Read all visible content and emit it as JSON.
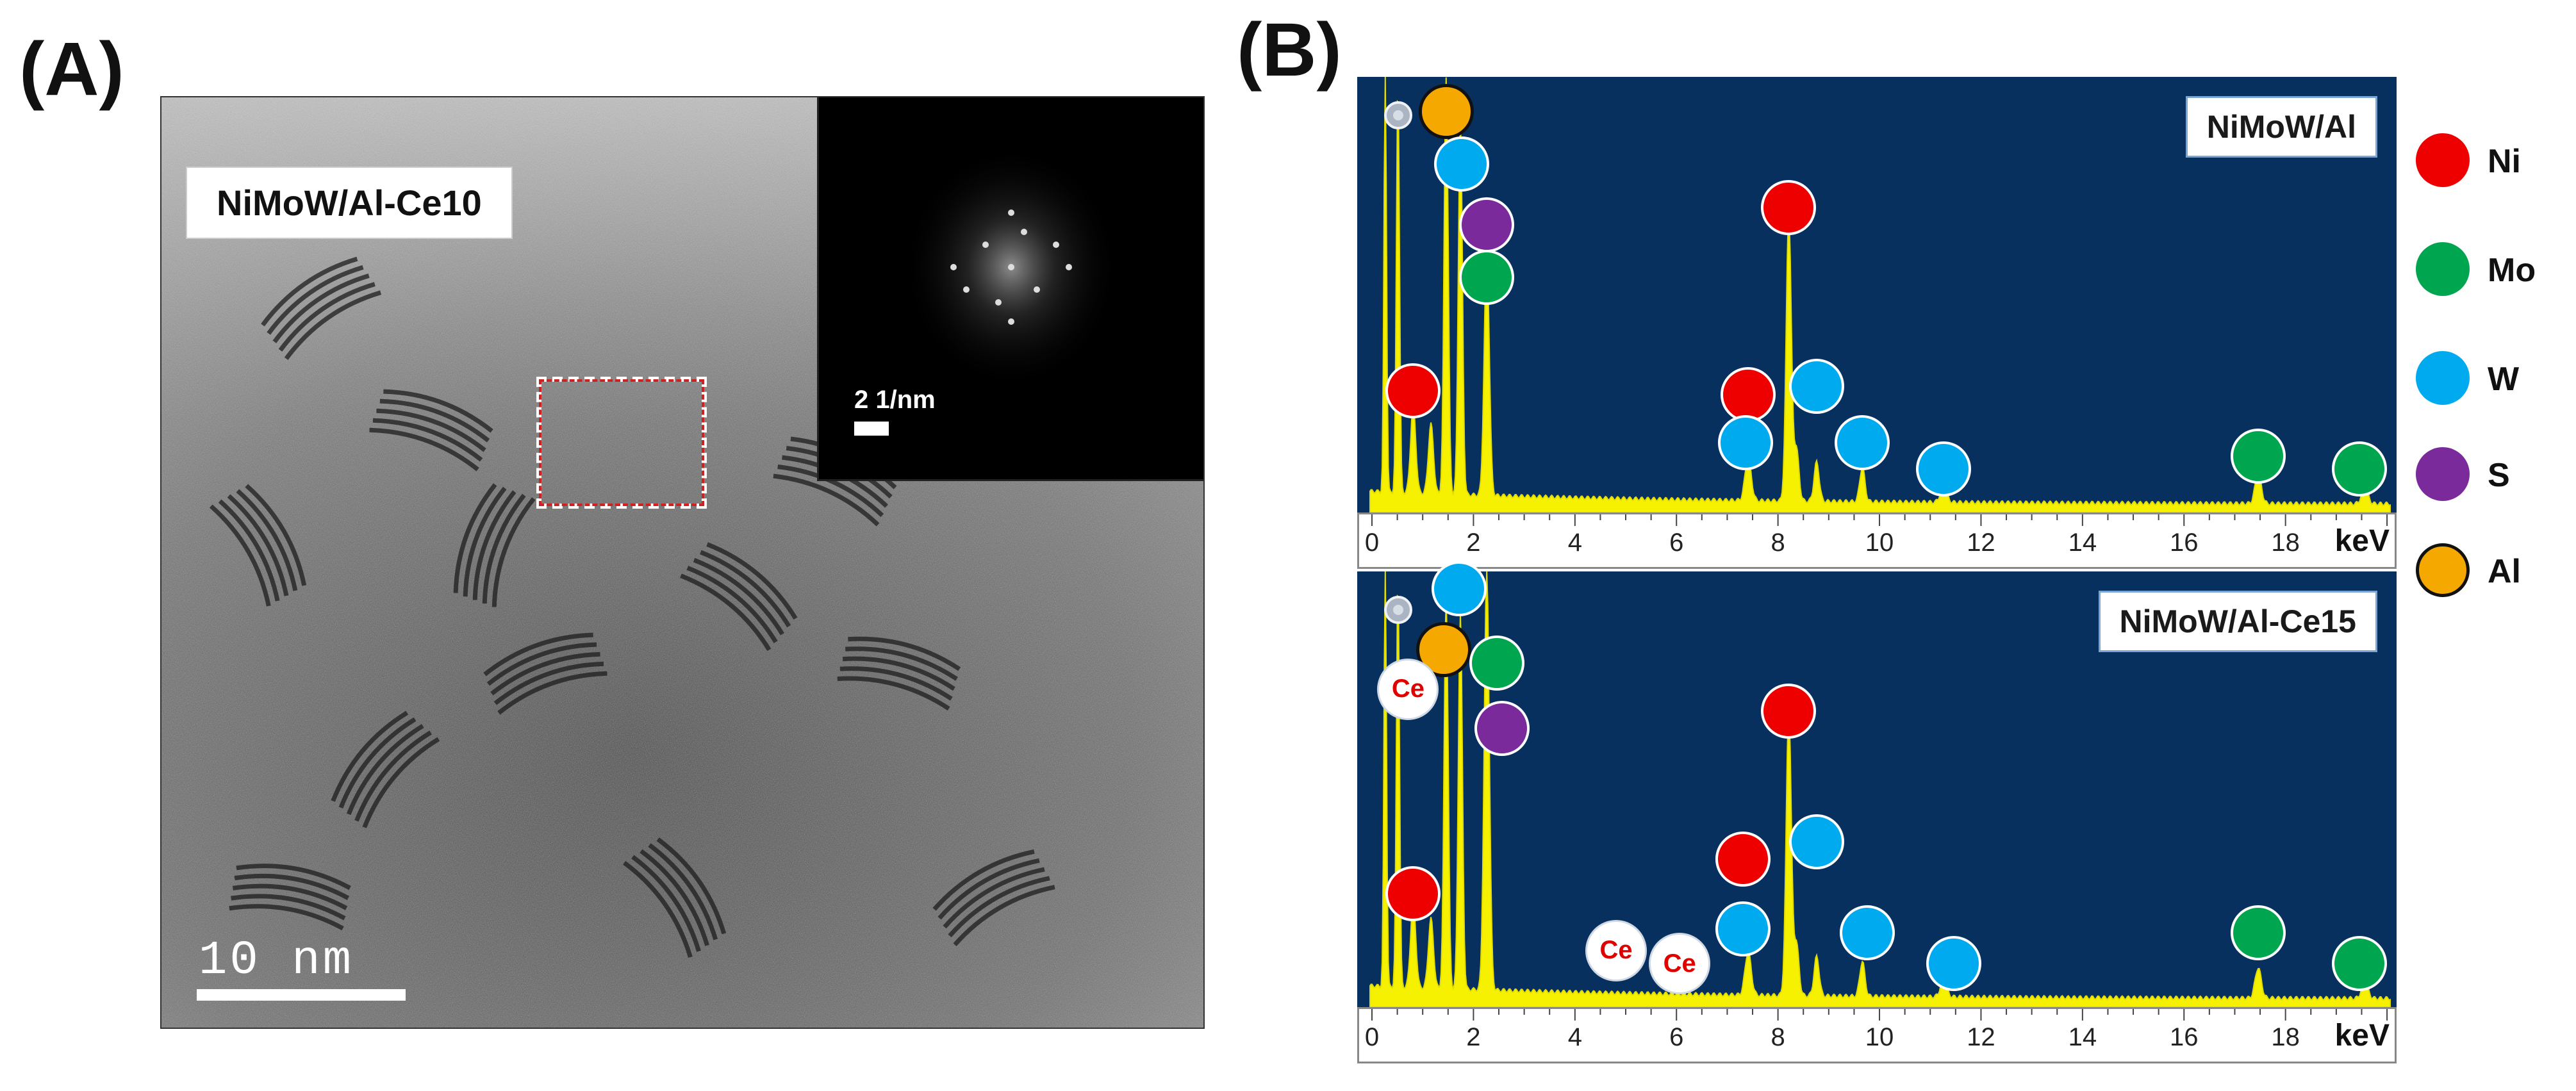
{
  "panels": {
    "a": "(A)",
    "b": "(B)"
  },
  "tem": {
    "label": "NiMoW/Al-Ce10",
    "scale_bar": "10 nm",
    "inset_scale": "2 1/nm"
  },
  "spectra": [
    {
      "label": "NiMoW/Al",
      "axis_unit": "keV",
      "ticks": [
        "0",
        "2",
        "4",
        "6",
        "8",
        "10",
        "12",
        "14",
        "16",
        "18"
      ],
      "markers": [
        {
          "element": "Al",
          "kev": 1.5,
          "level": 0.92
        },
        {
          "element": "W",
          "kev": 1.8,
          "level": 0.8
        },
        {
          "element": "S",
          "kev": 2.3,
          "level": 0.66
        },
        {
          "element": "Mo",
          "kev": 2.3,
          "level": 0.54
        },
        {
          "element": "Ni",
          "kev": 0.85,
          "level": 0.28
        },
        {
          "element": "Ni",
          "kev": 7.45,
          "level": 0.27
        },
        {
          "element": "Ni",
          "kev": 8.25,
          "level": 0.7
        },
        {
          "element": "W",
          "kev": 8.8,
          "level": 0.29
        },
        {
          "element": "W",
          "kev": 7.4,
          "level": 0.16
        },
        {
          "element": "W",
          "kev": 9.7,
          "level": 0.16
        },
        {
          "element": "W",
          "kev": 11.3,
          "level": 0.1
        },
        {
          "element": "Mo",
          "kev": 17.5,
          "level": 0.13
        },
        {
          "element": "Mo",
          "kev": 19.5,
          "level": 0.1
        }
      ],
      "ce_markers": [],
      "gear_kev": 0.55
    },
    {
      "label": "NiMoW/Al-Ce15",
      "axis_unit": "keV",
      "ticks": [
        "0",
        "2",
        "4",
        "6",
        "8",
        "10",
        "12",
        "14",
        "16",
        "18"
      ],
      "markers": [
        {
          "element": "W",
          "kev": 1.75,
          "level": 0.96
        },
        {
          "element": "Al",
          "kev": 1.45,
          "level": 0.82
        },
        {
          "element": "Mo",
          "kev": 2.5,
          "level": 0.79
        },
        {
          "element": "S",
          "kev": 2.6,
          "level": 0.64
        },
        {
          "element": "Ni",
          "kev": 0.85,
          "level": 0.26
        },
        {
          "element": "Ni",
          "kev": 7.35,
          "level": 0.34
        },
        {
          "element": "Ni",
          "kev": 8.25,
          "level": 0.68
        },
        {
          "element": "W",
          "kev": 8.8,
          "level": 0.38
        },
        {
          "element": "W",
          "kev": 7.35,
          "level": 0.18
        },
        {
          "element": "W",
          "kev": 9.8,
          "level": 0.17
        },
        {
          "element": "W",
          "kev": 11.5,
          "level": 0.1
        },
        {
          "element": "Mo",
          "kev": 17.5,
          "level": 0.17
        },
        {
          "element": "Mo",
          "kev": 19.5,
          "level": 0.1
        }
      ],
      "ce_markers": [
        {
          "label": "Ce",
          "kev": 0.75,
          "level": 0.73
        },
        {
          "label": "Ce",
          "kev": 4.85,
          "level": 0.13
        },
        {
          "label": "Ce",
          "kev": 6.1,
          "level": 0.1
        }
      ],
      "gear_kev": 0.55
    }
  ],
  "legend": [
    {
      "label": "Ni",
      "color": "#ee0000"
    },
    {
      "label": "Mo",
      "color": "#00a550"
    },
    {
      "label": "W",
      "color": "#00aaee"
    },
    {
      "label": "S",
      "color": "#7a2a9a"
    },
    {
      "label": "Al",
      "color": "#f5a800"
    }
  ]
}
